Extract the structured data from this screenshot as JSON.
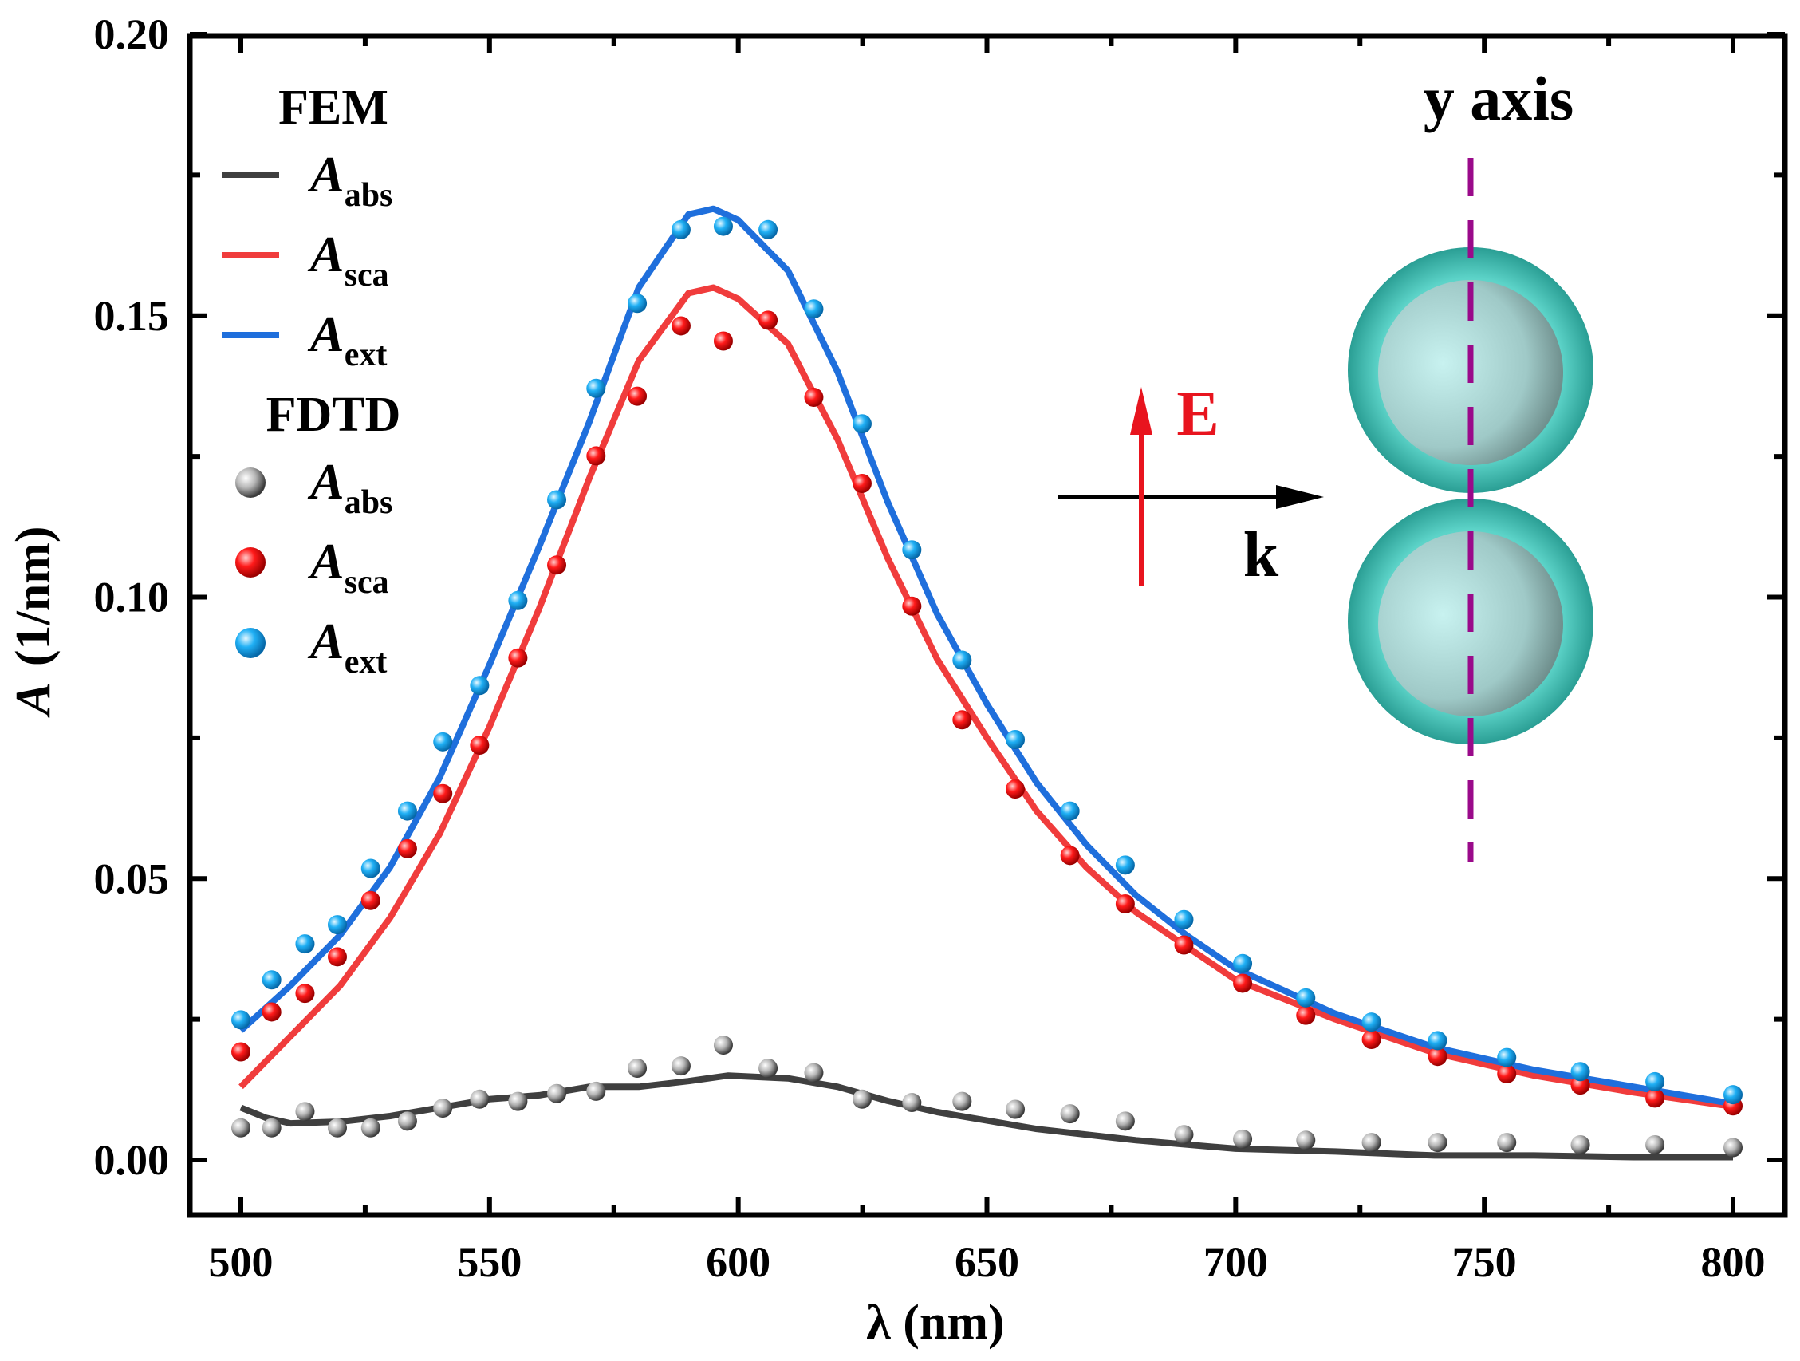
{
  "chart_data": {
    "type": "line",
    "xlabel": "λ (nm)",
    "ylabel_italic": "A",
    "ylabel_unit": "(1/nm)",
    "xlim": [
      500,
      800
    ],
    "ylim": [
      -0.0105,
      0.2
    ],
    "xticks": [
      500,
      550,
      600,
      650,
      700,
      750,
      800
    ],
    "xtick_labels": [
      "500",
      "550",
      "600",
      "650",
      "700",
      "750",
      "800"
    ],
    "yticks": [
      0,
      0.05,
      0.1,
      0.15,
      0.2
    ],
    "ytick_labels": [
      "0.00",
      "0.05",
      "0.10",
      "0.15",
      "0.20"
    ],
    "grid": false,
    "legend": {
      "placement": "top-left",
      "groups": [
        {
          "title": "FEM",
          "entries": [
            {
              "main": "A",
              "sub": "abs"
            },
            {
              "main": "A",
              "sub": "sca"
            },
            {
              "main": "A",
              "sub": "ext"
            }
          ]
        },
        {
          "title": "FDTD",
          "entries": [
            {
              "main": "A",
              "sub": "abs"
            },
            {
              "main": "A",
              "sub": "sca"
            },
            {
              "main": "A",
              "sub": "ext"
            }
          ]
        }
      ]
    },
    "colors": {
      "abs": "#3f3f3f",
      "sca": "#f03c3c",
      "ext": "#1f6fdc",
      "abs_pt": "#9a9a9a",
      "sca_pt": "#e8141e",
      "ext_pt": "#1eaaf0"
    },
    "fem_series": [
      {
        "name": "FEM A_abs",
        "key": "abs",
        "x": [
          500,
          505,
          510,
          520,
          530,
          540,
          550,
          560,
          570,
          580,
          590,
          598,
          610,
          620,
          630,
          640,
          650,
          660,
          680,
          700,
          720,
          740,
          760,
          780,
          800
        ],
        "y": [
          0.0093,
          0.0075,
          0.0065,
          0.0068,
          0.0078,
          0.0093,
          0.0108,
          0.0115,
          0.013,
          0.013,
          0.014,
          0.015,
          0.0145,
          0.013,
          0.0105,
          0.0085,
          0.007,
          0.0055,
          0.0035,
          0.002,
          0.0015,
          0.0008,
          0.0008,
          0.0005,
          0.0005
        ]
      },
      {
        "name": "FEM A_sca",
        "key": "sca",
        "x": [
          500,
          510,
          520,
          530,
          540,
          550,
          560,
          570,
          580,
          590,
          595,
          600,
          610,
          620,
          630,
          640,
          650,
          660,
          670,
          680,
          690,
          700,
          720,
          740,
          760,
          780,
          800
        ],
        "y": [
          0.013,
          0.022,
          0.031,
          0.043,
          0.058,
          0.077,
          0.098,
          0.121,
          0.142,
          0.154,
          0.155,
          0.153,
          0.145,
          0.128,
          0.107,
          0.089,
          0.075,
          0.062,
          0.052,
          0.044,
          0.038,
          0.032,
          0.025,
          0.019,
          0.015,
          0.012,
          0.0095
        ]
      },
      {
        "name": "FEM A_ext",
        "key": "ext",
        "x": [
          500,
          510,
          520,
          530,
          540,
          550,
          560,
          570,
          580,
          590,
          595,
          600,
          610,
          620,
          630,
          640,
          650,
          660,
          670,
          680,
          690,
          700,
          720,
          740,
          760,
          780,
          800
        ],
        "y": [
          0.023,
          0.031,
          0.04,
          0.052,
          0.068,
          0.088,
          0.109,
          0.131,
          0.155,
          0.168,
          0.169,
          0.167,
          0.158,
          0.14,
          0.117,
          0.097,
          0.081,
          0.067,
          0.056,
          0.047,
          0.04,
          0.034,
          0.026,
          0.02,
          0.016,
          0.013,
          0.01
        ]
      }
    ],
    "fdtd_x": [
      500,
      506.2,
      512.9,
      519.4,
      526.1,
      533.5,
      540.6,
      548,
      555.7,
      563.5,
      571.4,
      579.7,
      588.5,
      597,
      606,
      615.2,
      624.9,
      634.9,
      645,
      655.7,
      666.7,
      677.8,
      689.6,
      701.4,
      714.1,
      727.3,
      740.6,
      754.5,
      769.3,
      784.3,
      800
    ],
    "fdtd_series": [
      {
        "name": "FDTD A_abs",
        "key": "abs",
        "y": [
          0.0057,
          0.0057,
          0.0086,
          0.0057,
          0.0057,
          0.0069,
          0.0092,
          0.0108,
          0.0104,
          0.0118,
          0.0122,
          0.0163,
          0.0167,
          0.0204,
          0.0163,
          0.0155,
          0.0108,
          0.0102,
          0.0104,
          0.009,
          0.0082,
          0.0069,
          0.0045,
          0.0037,
          0.0035,
          0.0031,
          0.0031,
          0.0031,
          0.0027,
          0.0027,
          0.0022
        ]
      },
      {
        "name": "FDTD A_sca",
        "key": "sca",
        "y": [
          0.0192,
          0.0263,
          0.0296,
          0.0361,
          0.0461,
          0.0553,
          0.0651,
          0.0737,
          0.0892,
          0.1057,
          0.1251,
          0.1357,
          0.1482,
          0.1455,
          0.1492,
          0.1355,
          0.1202,
          0.0984,
          0.0782,
          0.0659,
          0.0541,
          0.0455,
          0.0382,
          0.0314,
          0.0257,
          0.0214,
          0.0184,
          0.0153,
          0.0133,
          0.011,
          0.0096
        ]
      },
      {
        "name": "FDTD A_ext",
        "key": "ext",
        "y": [
          0.0249,
          0.032,
          0.0384,
          0.0418,
          0.0518,
          0.062,
          0.0743,
          0.0843,
          0.0994,
          0.1173,
          0.1371,
          0.1522,
          0.1653,
          0.1659,
          0.1653,
          0.1512,
          0.1308,
          0.1084,
          0.0888,
          0.0747,
          0.062,
          0.0524,
          0.0427,
          0.0349,
          0.0288,
          0.0245,
          0.0212,
          0.0182,
          0.0157,
          0.0139,
          0.0116
        ]
      }
    ],
    "annotations": {
      "axis_label": "y axis",
      "field": "E",
      "wavevector": "k"
    }
  }
}
